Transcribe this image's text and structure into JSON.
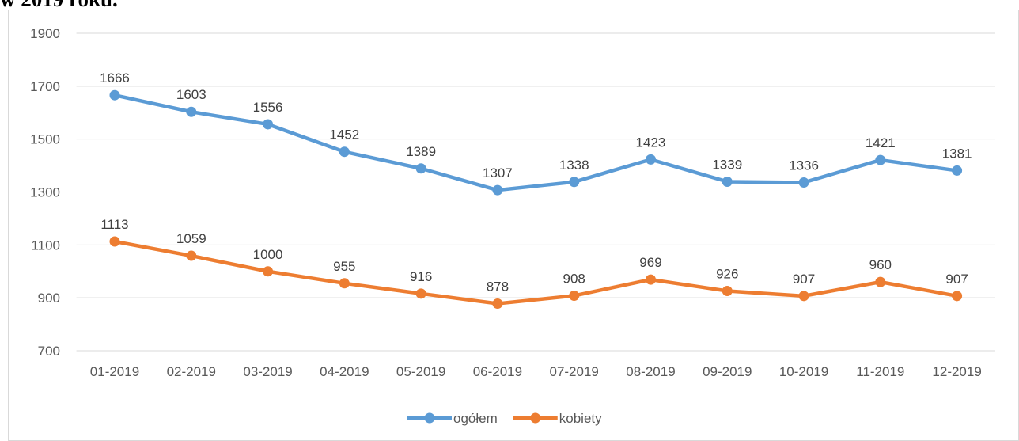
{
  "heading": "w 2019 roku.",
  "chart_data": {
    "type": "line",
    "categories": [
      "01-2019",
      "02-2019",
      "03-2019",
      "04-2019",
      "05-2019",
      "06-2019",
      "07-2019",
      "08-2019",
      "09-2019",
      "10-2019",
      "11-2019",
      "12-2019"
    ],
    "series": [
      {
        "name": "ogółem",
        "color": "#5b9bd5",
        "values": [
          1666,
          1603,
          1556,
          1452,
          1389,
          1307,
          1338,
          1423,
          1339,
          1336,
          1421,
          1381
        ]
      },
      {
        "name": "kobiety",
        "color": "#ed7d31",
        "values": [
          1113,
          1059,
          1000,
          955,
          916,
          878,
          908,
          969,
          926,
          907,
          960,
          907
        ]
      }
    ],
    "ylim": [
      700,
      1900
    ],
    "yticks": [
      700,
      900,
      1100,
      1300,
      1500,
      1700,
      1900
    ],
    "grid": true,
    "legend": "bottom"
  }
}
